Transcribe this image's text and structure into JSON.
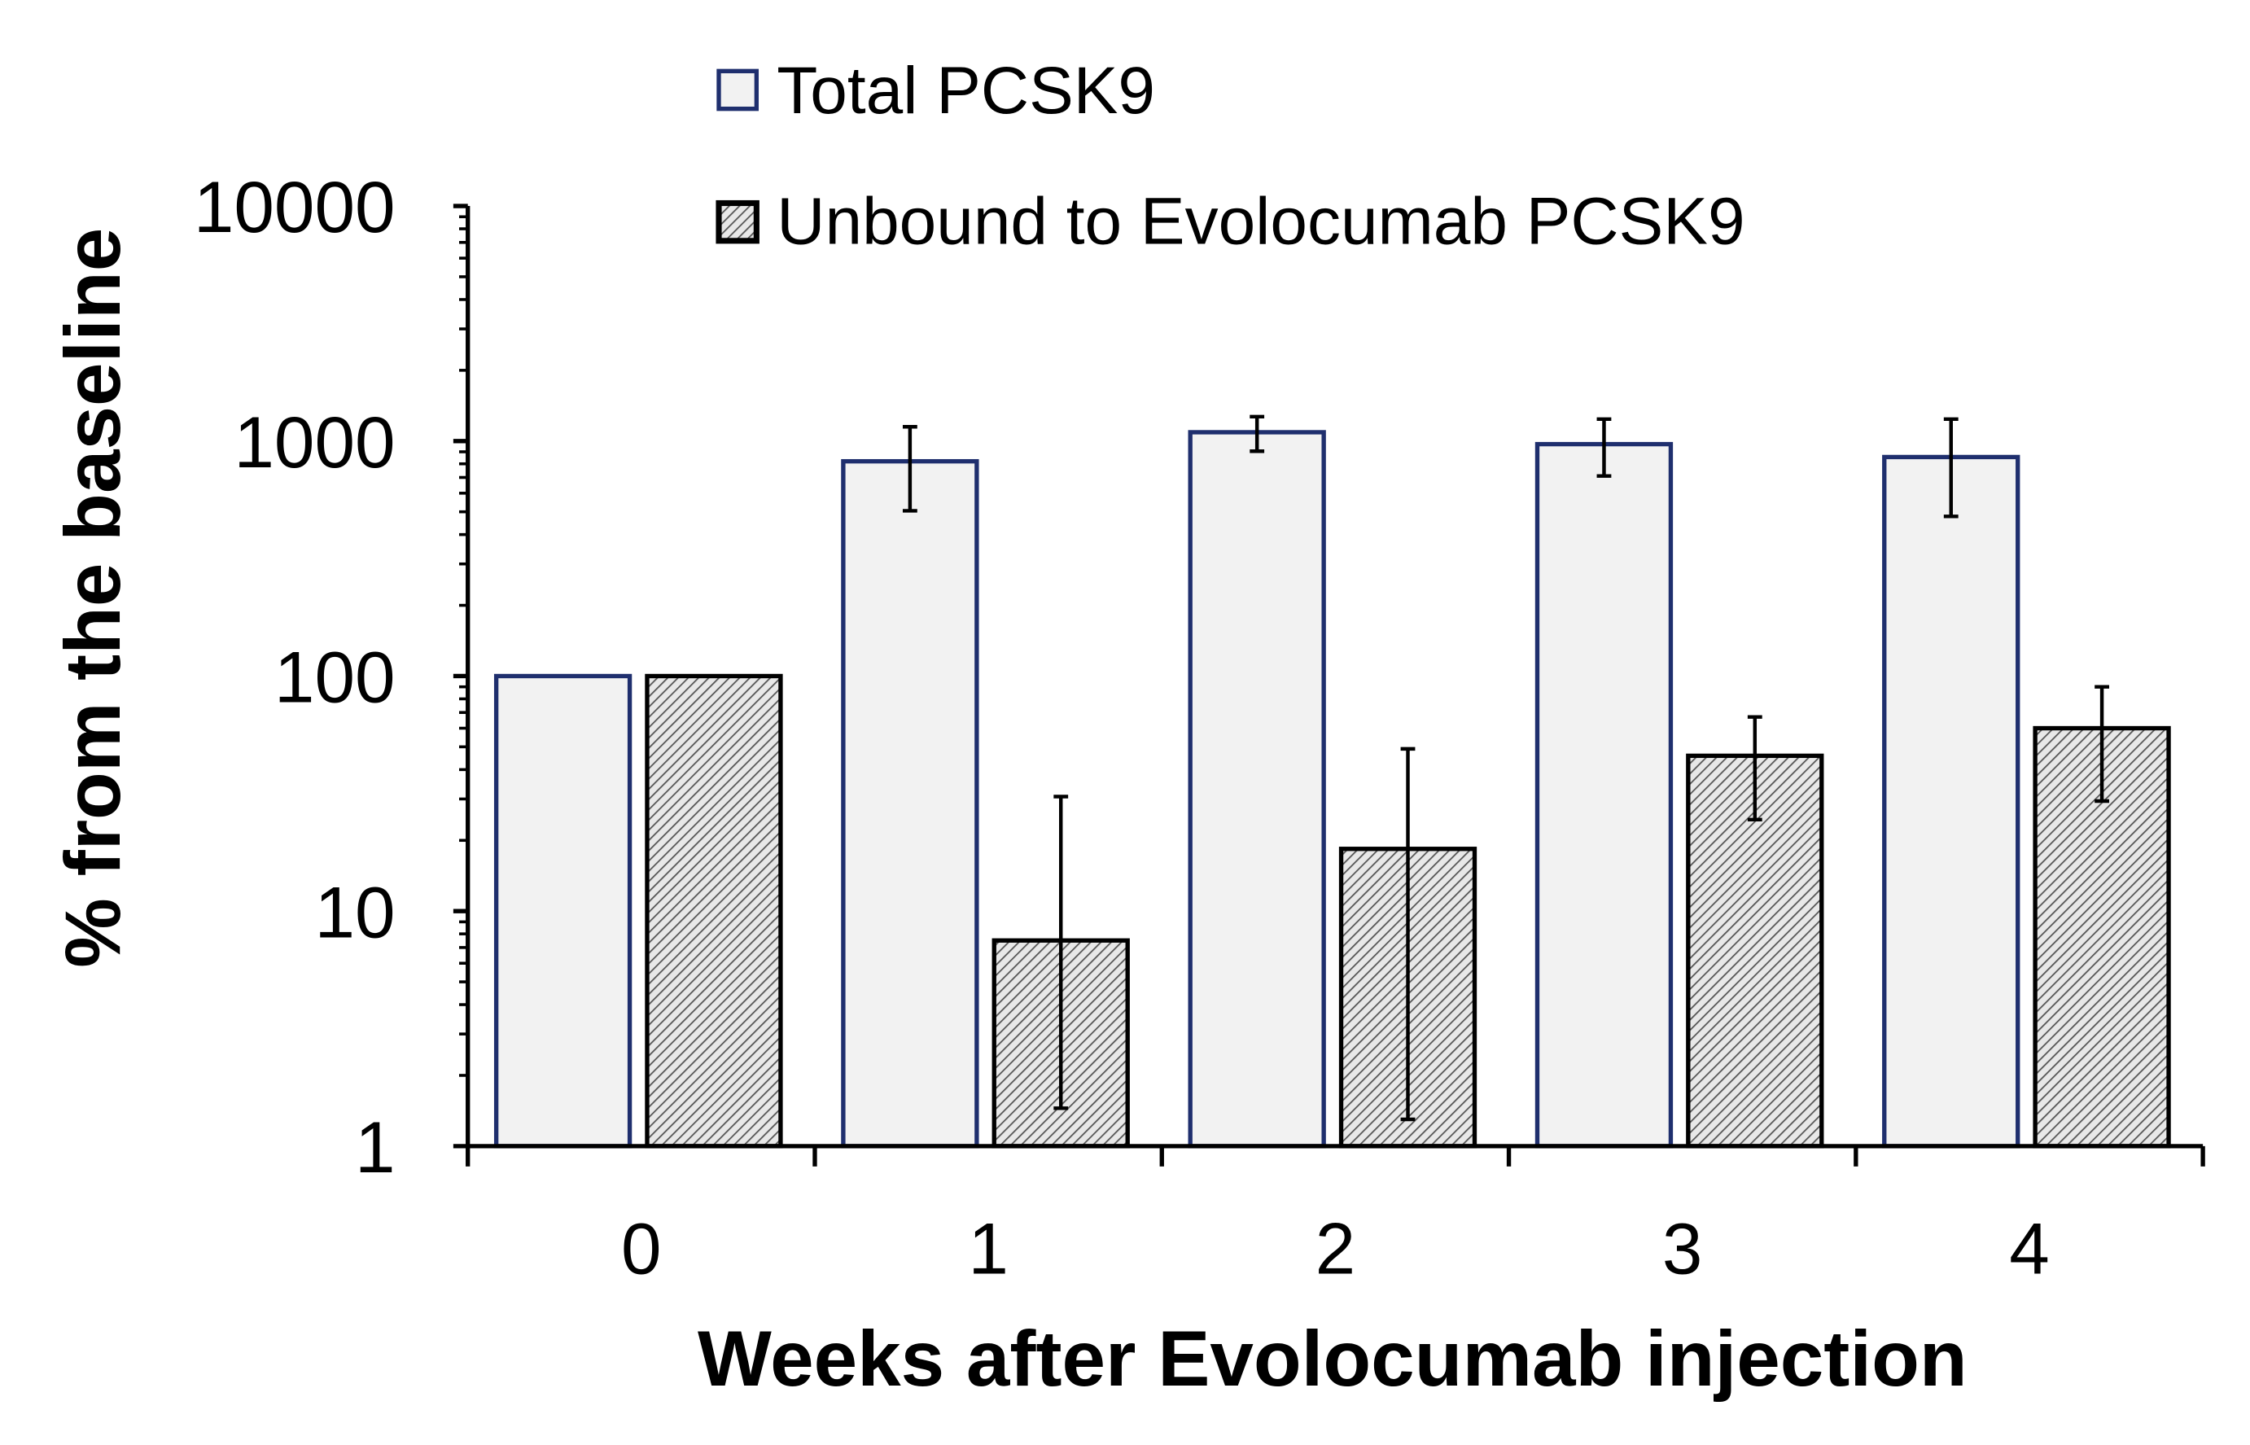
{
  "chart_data": {
    "type": "bar",
    "title": "",
    "xlabel": "Weeks after Evolocumab injection",
    "ylabel": "% from the baseline",
    "yscale": "log",
    "ylim": [
      1,
      10000
    ],
    "yticks": [
      "1",
      "10",
      "100",
      "1000",
      "10000"
    ],
    "categories": [
      "0",
      "1",
      "2",
      "3",
      "4"
    ],
    "legend_position": "top",
    "grid": false,
    "series": [
      {
        "name": "Total PCSK9",
        "values": [
          100,
          820,
          1090,
          970,
          855
        ],
        "err_low": [
          100,
          505,
          905,
          710,
          478
        ],
        "err_high": [
          100,
          1150,
          1270,
          1240,
          1240
        ],
        "fill": "#f2f2f2",
        "stroke": "#1f2f6e"
      },
      {
        "name": "Unbound to Evolocumab PCSK9",
        "values": [
          100,
          7.5,
          18.4,
          45.8,
          60
        ],
        "err_low": [
          100,
          1.45,
          1.3,
          24.5,
          29.4
        ],
        "err_high": [
          100,
          30.7,
          49,
          67,
          90
        ],
        "fill": "hatch",
        "stroke": "#000000"
      }
    ]
  }
}
